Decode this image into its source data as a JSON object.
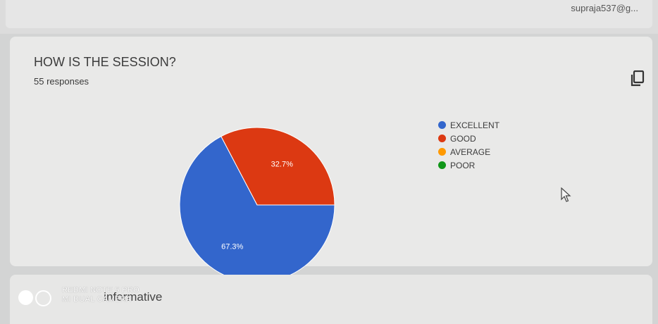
{
  "header": {
    "email": "supraja537@g..."
  },
  "question": {
    "title": "HOW IS THE SESSION?",
    "responses": "55 responses"
  },
  "chart_data": {
    "type": "pie",
    "categories": [
      "EXCELLENT",
      "GOOD",
      "AVERAGE",
      "POOR"
    ],
    "values": [
      67.3,
      32.7,
      0,
      0
    ],
    "labels": [
      "67.3%",
      "32.7%",
      "",
      ""
    ],
    "colors": [
      "#3366cc",
      "#dc3912",
      "#ff9900",
      "#109618"
    ]
  },
  "legend": [
    "EXCELLENT",
    "GOOD",
    "AVERAGE",
    "POOR"
  ],
  "next_question": {
    "title": "informative"
  },
  "watermark": {
    "line1": "REDMI NOTE 5 PRO",
    "line2": "MI DUAL CAMERA"
  },
  "icons": {
    "copy": "copy-icon",
    "cursor": "mouse-pointer-icon"
  }
}
